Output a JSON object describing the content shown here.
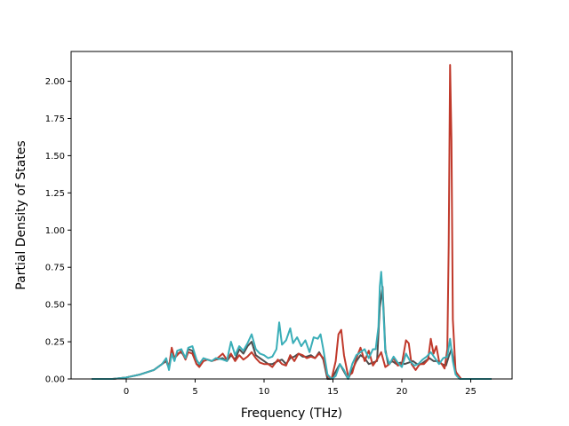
{
  "chart_data": {
    "type": "line",
    "title": "",
    "xlabel": "Frequency (THz)",
    "ylabel": "Partial Density of States",
    "xlim": [
      -4.0,
      28.0
    ],
    "ylim": [
      0.0,
      2.2
    ],
    "xticks": [
      0,
      5,
      10,
      15,
      20,
      25
    ],
    "xtick_labels": [
      "0",
      "5",
      "10",
      "15",
      "20",
      "25"
    ],
    "yticks": [
      0.0,
      0.25,
      0.5,
      0.75,
      1.0,
      1.25,
      1.5,
      1.75,
      2.0
    ],
    "ytick_labels": [
      "0.00",
      "0.25",
      "0.50",
      "0.75",
      "1.00",
      "1.25",
      "1.50",
      "1.75",
      "2.00"
    ],
    "grid": false,
    "legend": "none",
    "series": [
      {
        "color": "#4d4d4d",
        "x": [
          -2.5,
          -1.0,
          0.0,
          1.0,
          2.0,
          2.6,
          2.9,
          3.1,
          3.3,
          3.5,
          3.7,
          4.0,
          4.3,
          4.5,
          4.8,
          5.1,
          5.3,
          5.6,
          5.9,
          6.2,
          6.5,
          7.0,
          7.3,
          7.6,
          7.9,
          8.2,
          8.5,
          8.8,
          9.1,
          9.4,
          9.7,
          10.0,
          10.3,
          10.6,
          11.0,
          11.3,
          11.6,
          11.9,
          12.2,
          12.5,
          12.8,
          13.1,
          13.4,
          13.7,
          14.0,
          14.3,
          14.6,
          14.9,
          15.2,
          15.5,
          15.8,
          16.1,
          16.4,
          16.7,
          17.0,
          17.3,
          17.6,
          17.9,
          18.2,
          18.4,
          18.6,
          18.8,
          19.0,
          19.3,
          19.6,
          19.9,
          20.2,
          20.5,
          20.8,
          21.1,
          21.4,
          21.7,
          22.0,
          22.3,
          22.6,
          22.9,
          23.2,
          23.4,
          23.6,
          23.8,
          24.0,
          24.3,
          25.0,
          26.5
        ],
        "y": [
          0.0,
          0.0,
          0.01,
          0.03,
          0.06,
          0.1,
          0.12,
          0.07,
          0.19,
          0.14,
          0.17,
          0.18,
          0.14,
          0.2,
          0.19,
          0.1,
          0.09,
          0.12,
          0.13,
          0.12,
          0.13,
          0.14,
          0.12,
          0.16,
          0.13,
          0.2,
          0.17,
          0.22,
          0.25,
          0.16,
          0.14,
          0.12,
          0.1,
          0.1,
          0.12,
          0.13,
          0.1,
          0.14,
          0.15,
          0.17,
          0.15,
          0.15,
          0.16,
          0.14,
          0.18,
          0.13,
          0.0,
          0.0,
          0.05,
          0.1,
          0.05,
          0.0,
          0.06,
          0.12,
          0.16,
          0.14,
          0.1,
          0.11,
          0.12,
          0.48,
          0.62,
          0.2,
          0.1,
          0.12,
          0.1,
          0.11,
          0.1,
          0.11,
          0.12,
          0.1,
          0.1,
          0.12,
          0.14,
          0.12,
          0.12,
          0.1,
          0.09,
          0.15,
          0.2,
          0.1,
          0.02,
          0.0,
          0.0,
          0.0
        ]
      },
      {
        "color": "#c0392b",
        "x": [
          -2.5,
          -1.0,
          0.0,
          1.0,
          2.0,
          2.6,
          2.9,
          3.1,
          3.3,
          3.5,
          3.7,
          4.0,
          4.3,
          4.5,
          4.8,
          5.1,
          5.3,
          5.6,
          5.9,
          6.2,
          6.5,
          7.0,
          7.3,
          7.6,
          7.9,
          8.2,
          8.5,
          8.8,
          9.1,
          9.4,
          9.7,
          10.0,
          10.3,
          10.6,
          11.0,
          11.3,
          11.6,
          11.9,
          12.2,
          12.5,
          12.8,
          13.1,
          13.4,
          13.7,
          14.0,
          14.3,
          14.6,
          14.9,
          15.2,
          15.4,
          15.6,
          15.8,
          16.1,
          16.4,
          16.7,
          17.0,
          17.3,
          17.6,
          17.9,
          18.2,
          18.5,
          18.8,
          19.1,
          19.4,
          19.7,
          20.0,
          20.3,
          20.5,
          20.7,
          21.0,
          21.3,
          21.6,
          21.9,
          22.1,
          22.3,
          22.5,
          22.7,
          22.9,
          23.1,
          23.3,
          23.4,
          23.5,
          23.6,
          23.7,
          23.9,
          24.3,
          25.0,
          26.5
        ],
        "y": [
          0.0,
          0.0,
          0.01,
          0.03,
          0.06,
          0.1,
          0.13,
          0.08,
          0.21,
          0.14,
          0.16,
          0.19,
          0.13,
          0.18,
          0.17,
          0.1,
          0.08,
          0.12,
          0.13,
          0.12,
          0.13,
          0.17,
          0.13,
          0.17,
          0.12,
          0.16,
          0.13,
          0.15,
          0.18,
          0.14,
          0.11,
          0.1,
          0.1,
          0.08,
          0.13,
          0.1,
          0.09,
          0.16,
          0.12,
          0.17,
          0.16,
          0.14,
          0.15,
          0.14,
          0.17,
          0.14,
          0.02,
          0.0,
          0.12,
          0.3,
          0.33,
          0.16,
          0.02,
          0.04,
          0.14,
          0.21,
          0.12,
          0.19,
          0.09,
          0.13,
          0.18,
          0.08,
          0.1,
          0.14,
          0.09,
          0.1,
          0.26,
          0.24,
          0.1,
          0.06,
          0.1,
          0.1,
          0.13,
          0.27,
          0.17,
          0.22,
          0.12,
          0.1,
          0.07,
          0.2,
          0.9,
          2.11,
          1.6,
          0.4,
          0.05,
          0.0,
          0.0,
          0.0
        ]
      },
      {
        "color": "#3aaeb8",
        "x": [
          -2.5,
          -1.0,
          0.0,
          1.0,
          2.0,
          2.6,
          2.9,
          3.1,
          3.3,
          3.5,
          3.7,
          4.0,
          4.3,
          4.5,
          4.8,
          5.1,
          5.3,
          5.6,
          5.9,
          6.2,
          6.5,
          7.0,
          7.3,
          7.6,
          7.9,
          8.2,
          8.5,
          8.8,
          9.1,
          9.4,
          9.7,
          10.0,
          10.3,
          10.6,
          10.9,
          11.1,
          11.3,
          11.6,
          11.9,
          12.1,
          12.4,
          12.7,
          13.0,
          13.3,
          13.6,
          13.9,
          14.1,
          14.3,
          14.6,
          14.9,
          15.2,
          15.5,
          15.8,
          16.1,
          16.4,
          16.7,
          17.0,
          17.3,
          17.6,
          17.9,
          18.1,
          18.3,
          18.4,
          18.5,
          18.6,
          18.8,
          19.1,
          19.4,
          19.7,
          20.0,
          20.3,
          20.6,
          20.9,
          21.2,
          21.5,
          21.8,
          22.1,
          22.4,
          22.7,
          23.0,
          23.3,
          23.5,
          23.7,
          23.9,
          24.2,
          25.0,
          26.5
        ],
        "y": [
          0.0,
          0.0,
          0.01,
          0.03,
          0.06,
          0.1,
          0.14,
          0.06,
          0.17,
          0.12,
          0.19,
          0.2,
          0.14,
          0.21,
          0.22,
          0.13,
          0.1,
          0.14,
          0.13,
          0.12,
          0.14,
          0.13,
          0.12,
          0.25,
          0.16,
          0.22,
          0.19,
          0.24,
          0.3,
          0.2,
          0.17,
          0.16,
          0.14,
          0.15,
          0.2,
          0.38,
          0.23,
          0.26,
          0.34,
          0.24,
          0.28,
          0.22,
          0.26,
          0.18,
          0.28,
          0.27,
          0.3,
          0.2,
          0.03,
          0.0,
          0.02,
          0.1,
          0.06,
          0.0,
          0.1,
          0.16,
          0.18,
          0.2,
          0.14,
          0.2,
          0.2,
          0.35,
          0.62,
          0.72,
          0.58,
          0.18,
          0.1,
          0.15,
          0.11,
          0.08,
          0.17,
          0.12,
          0.09,
          0.1,
          0.13,
          0.15,
          0.18,
          0.14,
          0.1,
          0.14,
          0.15,
          0.27,
          0.12,
          0.03,
          0.0,
          0.0,
          0.0
        ]
      }
    ]
  }
}
